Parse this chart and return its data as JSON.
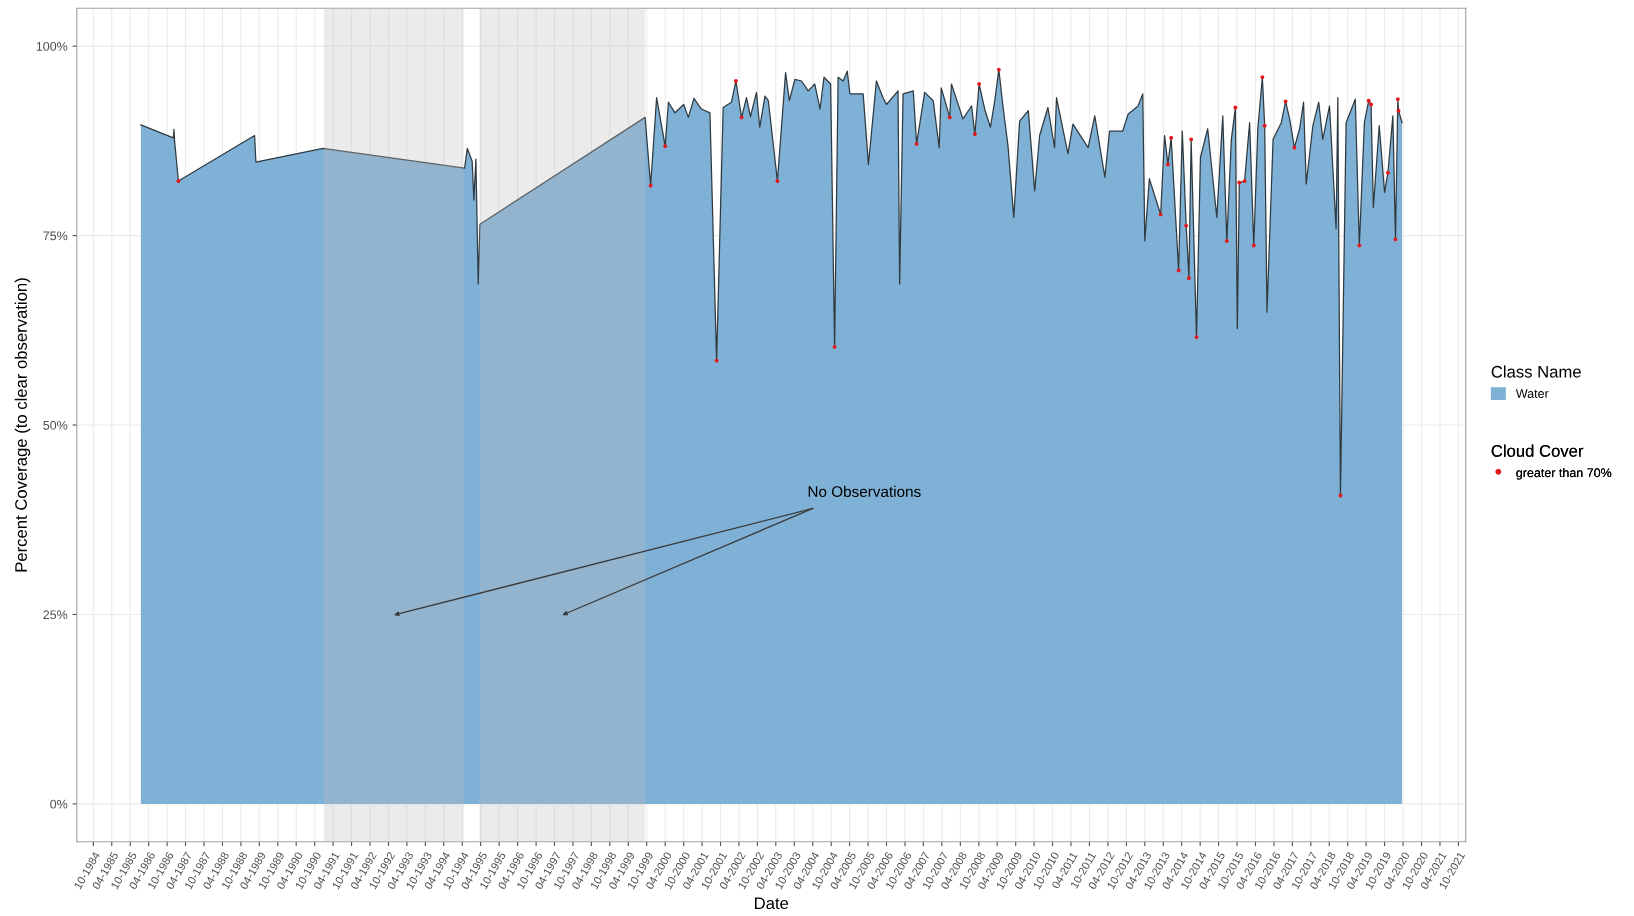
{
  "chart_data": {
    "type": "area",
    "xlabel": "Date",
    "ylabel": "Percent Coverage (to clear observation)",
    "legend_title": [
      "Class Name",
      "Cloud Cover"
    ],
    "legend": "right",
    "grid": true,
    "ylim": [
      -5,
      105
    ],
    "yticks": [
      {
        "value": 0,
        "label": "0%"
      },
      {
        "value": 25,
        "label": "25%"
      },
      {
        "value": 50,
        "label": "50%"
      },
      {
        "value": 75,
        "label": "75%"
      },
      {
        "value": 100,
        "label": "100%"
      }
    ],
    "xlim": [
      "1984-04-20",
      "2021-12-12"
    ],
    "xticks": [
      {
        "value": "1984-10-01",
        "label": "10-1984"
      },
      {
        "value": "1985-04-01",
        "label": "04-1985"
      },
      {
        "value": "1985-10-01",
        "label": "10-1985"
      },
      {
        "value": "1986-04-01",
        "label": "04-1986"
      },
      {
        "value": "1986-10-01",
        "label": "10-1986"
      },
      {
        "value": "1987-04-01",
        "label": "04-1987"
      },
      {
        "value": "1987-10-01",
        "label": "10-1987"
      },
      {
        "value": "1988-04-01",
        "label": "04-1988"
      },
      {
        "value": "1988-10-01",
        "label": "10-1988"
      },
      {
        "value": "1989-04-01",
        "label": "04-1989"
      },
      {
        "value": "1989-10-01",
        "label": "10-1989"
      },
      {
        "value": "1990-04-01",
        "label": "04-1990"
      },
      {
        "value": "1990-10-01",
        "label": "10-1990"
      },
      {
        "value": "1991-04-01",
        "label": "04-1991"
      },
      {
        "value": "1991-10-01",
        "label": "10-1991"
      },
      {
        "value": "1992-04-01",
        "label": "04-1992"
      },
      {
        "value": "1992-10-01",
        "label": "10-1992"
      },
      {
        "value": "1993-04-01",
        "label": "04-1993"
      },
      {
        "value": "1993-10-01",
        "label": "10-1993"
      },
      {
        "value": "1994-04-01",
        "label": "04-1994"
      },
      {
        "value": "1994-10-01",
        "label": "10-1994"
      },
      {
        "value": "1995-04-01",
        "label": "04-1995"
      },
      {
        "value": "1995-10-01",
        "label": "10-1995"
      },
      {
        "value": "1996-04-01",
        "label": "04-1996"
      },
      {
        "value": "1996-10-01",
        "label": "10-1996"
      },
      {
        "value": "1997-04-01",
        "label": "04-1997"
      },
      {
        "value": "1997-10-01",
        "label": "10-1997"
      },
      {
        "value": "1998-04-01",
        "label": "04-1998"
      },
      {
        "value": "1998-10-01",
        "label": "10-1998"
      },
      {
        "value": "1999-04-01",
        "label": "04-1999"
      },
      {
        "value": "1999-10-01",
        "label": "10-1999"
      },
      {
        "value": "2000-04-01",
        "label": "04-2000"
      },
      {
        "value": "2000-10-01",
        "label": "10-2000"
      },
      {
        "value": "2001-04-01",
        "label": "04-2001"
      },
      {
        "value": "2001-10-01",
        "label": "10-2001"
      },
      {
        "value": "2002-04-01",
        "label": "04-2002"
      },
      {
        "value": "2002-10-01",
        "label": "10-2002"
      },
      {
        "value": "2003-04-01",
        "label": "04-2003"
      },
      {
        "value": "2003-10-01",
        "label": "10-2003"
      },
      {
        "value": "2004-04-01",
        "label": "04-2004"
      },
      {
        "value": "2004-10-01",
        "label": "10-2004"
      },
      {
        "value": "2005-04-01",
        "label": "04-2005"
      },
      {
        "value": "2005-10-01",
        "label": "10-2005"
      },
      {
        "value": "2006-04-01",
        "label": "04-2006"
      },
      {
        "value": "2006-10-01",
        "label": "10-2006"
      },
      {
        "value": "2007-04-01",
        "label": "04-2007"
      },
      {
        "value": "2007-10-01",
        "label": "10-2007"
      },
      {
        "value": "2008-04-01",
        "label": "04-2008"
      },
      {
        "value": "2008-10-01",
        "label": "10-2008"
      },
      {
        "value": "2009-04-01",
        "label": "04-2009"
      },
      {
        "value": "2009-10-01",
        "label": "10-2009"
      },
      {
        "value": "2010-04-01",
        "label": "04-2010"
      },
      {
        "value": "2010-10-01",
        "label": "10-2010"
      },
      {
        "value": "2011-04-01",
        "label": "04-2011"
      },
      {
        "value": "2011-10-01",
        "label": "10-2011"
      },
      {
        "value": "2012-04-01",
        "label": "04-2012"
      },
      {
        "value": "2012-10-01",
        "label": "10-2012"
      },
      {
        "value": "2013-04-01",
        "label": "04-2013"
      },
      {
        "value": "2013-10-01",
        "label": "10-2013"
      },
      {
        "value": "2014-04-01",
        "label": "04-2014"
      },
      {
        "value": "2014-10-01",
        "label": "10-2014"
      },
      {
        "value": "2015-04-01",
        "label": "04-2015"
      },
      {
        "value": "2015-10-01",
        "label": "10-2015"
      },
      {
        "value": "2016-04-01",
        "label": "04-2016"
      },
      {
        "value": "2016-10-01",
        "label": "10-2016"
      },
      {
        "value": "2017-04-01",
        "label": "04-2017"
      },
      {
        "value": "2017-10-01",
        "label": "10-2017"
      },
      {
        "value": "2018-04-01",
        "label": "04-2018"
      },
      {
        "value": "2018-10-01",
        "label": "10-2018"
      },
      {
        "value": "2019-04-01",
        "label": "04-2019"
      },
      {
        "value": "2019-10-01",
        "label": "10-2019"
      },
      {
        "value": "2020-04-01",
        "label": "04-2020"
      },
      {
        "value": "2020-10-01",
        "label": "10-2020"
      },
      {
        "value": "2021-04-01",
        "label": "04-2021"
      },
      {
        "value": "2021-10-01",
        "label": "10-2021"
      }
    ],
    "bands": [
      {
        "axis": "x",
        "from": "1991-01-01",
        "to": "1994-10-15",
        "color": "#bfbfbf"
      },
      {
        "axis": "x",
        "from": "1995-03-20",
        "to": "1999-09-15",
        "color": "#bfbfbf"
      }
    ],
    "annotations": [
      "No Observations"
    ],
    "series": [
      {
        "type": "area",
        "name": "Water",
        "color": "#7fb0d6",
        "x": [
          "1986-01-14",
          "1986-12-02",
          "1986-12-08",
          "1986-12-14",
          "1987-01-21",
          "1989-02-13",
          "1989-02-26",
          "1990-12-22",
          "1994-10-24",
          "1994-11-20",
          "1995-01-07",
          "1995-01-24",
          "1995-02-13",
          "1995-03-08",
          "1995-03-25",
          "1999-09-15",
          "1999-11-09",
          "2000-01-07",
          "2000-04-01",
          "2000-05-03",
          "2000-07-07",
          "2000-10-01",
          "2000-11-16",
          "2001-01-11",
          "2001-03-25",
          "2001-06-18",
          "2001-08-23",
          "2001-10-27",
          "2002-01-17",
          "2002-03-02",
          "2002-04-27",
          "2002-06-15",
          "2002-07-24",
          "2002-09-22",
          "2002-10-24",
          "2002-12-15",
          "2003-01-17",
          "2003-04-17",
          "2003-07-07",
          "2003-08-13",
          "2003-10-07",
          "2003-12-12",
          "2004-02-16",
          "2004-04-21",
          "2004-06-12",
          "2004-07-21",
          "2004-09-25",
          "2004-11-03",
          "2004-12-08",
          "2005-01-27",
          "2005-03-08",
          "2005-04-04",
          "2005-08-13",
          "2005-10-04",
          "2005-12-22",
          "2006-02-26",
          "2006-04-01",
          "2006-07-24",
          "2006-08-09",
          "2006-09-12",
          "2006-12-22",
          "2007-01-24",
          "2007-04-14",
          "2007-07-07",
          "2007-09-05",
          "2007-09-25",
          "2007-12-18",
          "2008-01-04",
          "2008-04-27",
          "2008-07-21",
          "2008-08-23",
          "2008-10-04",
          "2008-12-02",
          "2009-01-24",
          "2009-03-08",
          "2009-04-17",
          "2009-05-26",
          "2009-07-17",
          "2009-09-12",
          "2009-11-09",
          "2010-02-03",
          "2010-04-07",
          "2010-05-26",
          "2010-08-16",
          "2010-10-21",
          "2010-11-09",
          "2011-03-02",
          "2011-04-21",
          "2011-09-18",
          "2011-11-23",
          "2012-03-02",
          "2012-04-17",
          "2012-08-26",
          "2012-10-17",
          "2013-01-24",
          "2013-03-12",
          "2013-04-01",
          "2013-05-16",
          "2013-09-05",
          "2013-10-14",
          "2013-11-16",
          "2013-12-18",
          "2014-03-02",
          "2014-04-07",
          "2014-05-16",
          "2014-06-12",
          "2014-07-04",
          "2014-08-26",
          "2014-10-04",
          "2014-12-15",
          "2015-03-15",
          "2015-05-13",
          "2015-06-22",
          "2015-08-06",
          "2015-09-15",
          "2015-10-04",
          "2015-10-24",
          "2015-12-15",
          "2016-02-03",
          "2016-03-15",
          "2016-04-24",
          "2016-06-08",
          "2016-07-01",
          "2016-07-24",
          "2016-09-22",
          "2016-12-12",
          "2017-01-24",
          "2017-03-05",
          "2017-04-21",
          "2017-06-12",
          "2017-07-21",
          "2017-08-16",
          "2017-10-21",
          "2017-12-18",
          "2018-01-27",
          "2018-04-04",
          "2018-06-08",
          "2018-06-25",
          "2018-07-21",
          "2018-09-15",
          "2018-12-15",
          "2019-01-24",
          "2019-03-15",
          "2019-04-27",
          "2019-05-20",
          "2019-06-12",
          "2019-08-09",
          "2019-10-01",
          "2019-11-03",
          "2019-12-22",
          "2020-01-17",
          "2020-02-09",
          "2020-02-16",
          "2020-03-22"
        ],
        "values": [
          89.6,
          87.9,
          89.0,
          87.5,
          82.2,
          88.2,
          84.7,
          86.5,
          83.9,
          86.5,
          84.8,
          79.7,
          85.1,
          68.6,
          76.5,
          90.6,
          81.6,
          93.2,
          86.8,
          92.6,
          91.2,
          92.3,
          90.6,
          93.1,
          91.7,
          91.2,
          58.5,
          91.9,
          92.6,
          95.4,
          90.6,
          93.2,
          90.7,
          93.9,
          89.3,
          93.4,
          92.8,
          82.2,
          96.5,
          92.8,
          95.6,
          95.4,
          94.1,
          95.0,
          91.7,
          95.9,
          95.0,
          60.3,
          95.9,
          95.4,
          96.7,
          93.7,
          93.7,
          84.4,
          95.4,
          93.2,
          92.3,
          94.1,
          68.6,
          93.7,
          94.1,
          87.1,
          93.9,
          92.8,
          86.6,
          94.5,
          90.6,
          95.0,
          90.4,
          92.1,
          88.4,
          95.0,
          91.5,
          89.3,
          92.8,
          96.9,
          92.3,
          86.8,
          77.4,
          90.1,
          91.5,
          80.9,
          88.2,
          91.9,
          86.6,
          93.2,
          85.8,
          89.7,
          86.6,
          90.8,
          82.7,
          88.8,
          88.8,
          91.0,
          92.1,
          93.7,
          74.3,
          82.5,
          77.8,
          88.2,
          84.4,
          87.9,
          70.4,
          88.8,
          76.3,
          69.4,
          87.7,
          61.6,
          85.3,
          89.1,
          77.4,
          90.8,
          74.3,
          87.7,
          91.9,
          62.7,
          82.0,
          82.2,
          89.9,
          73.7,
          89.1,
          95.9,
          89.5,
          64.9,
          87.7,
          89.9,
          92.7,
          90.4,
          86.6,
          89.1,
          92.6,
          81.8,
          89.5,
          92.6,
          87.7,
          92.1,
          75.9,
          93.2,
          40.7,
          89.9,
          93.0,
          73.7,
          89.9,
          92.8,
          92.3,
          78.7,
          89.5,
          80.7,
          83.3,
          90.8,
          74.5,
          93.0,
          91.5,
          89.9
        ]
      },
      {
        "type": "scatter",
        "name": "greater than 70%",
        "color": "#e31a1c",
        "marker": "circle",
        "x": [
          "1987-01-21",
          "1999-11-09",
          "2000-04-01",
          "2001-08-23",
          "2002-03-02",
          "2002-04-27",
          "2003-04-17",
          "2004-11-03",
          "2007-01-24",
          "2007-12-18",
          "2008-08-23",
          "2008-10-04",
          "2009-04-17",
          "2013-09-05",
          "2013-11-16",
          "2013-12-18",
          "2014-03-02",
          "2014-05-16",
          "2014-06-12",
          "2014-07-04",
          "2014-08-26",
          "2015-06-22",
          "2015-09-15",
          "2015-10-24",
          "2015-12-15",
          "2016-03-15",
          "2016-06-08",
          "2016-07-01",
          "2017-01-24",
          "2017-04-21",
          "2018-07-21",
          "2019-01-24",
          "2019-04-27",
          "2019-05-20",
          "2019-11-03",
          "2020-01-17",
          "2020-02-09",
          "2020-02-16"
        ],
        "values": [
          82.2,
          81.6,
          86.8,
          58.5,
          95.4,
          90.6,
          82.2,
          60.3,
          87.1,
          90.6,
          88.4,
          95.0,
          96.9,
          77.8,
          84.4,
          87.9,
          70.4,
          76.3,
          69.4,
          87.7,
          61.6,
          74.3,
          91.9,
          82.0,
          82.2,
          73.7,
          95.9,
          89.5,
          92.7,
          86.6,
          40.7,
          73.7,
          92.8,
          92.3,
          83.3,
          74.5,
          93.0,
          91.5
        ]
      }
    ]
  }
}
